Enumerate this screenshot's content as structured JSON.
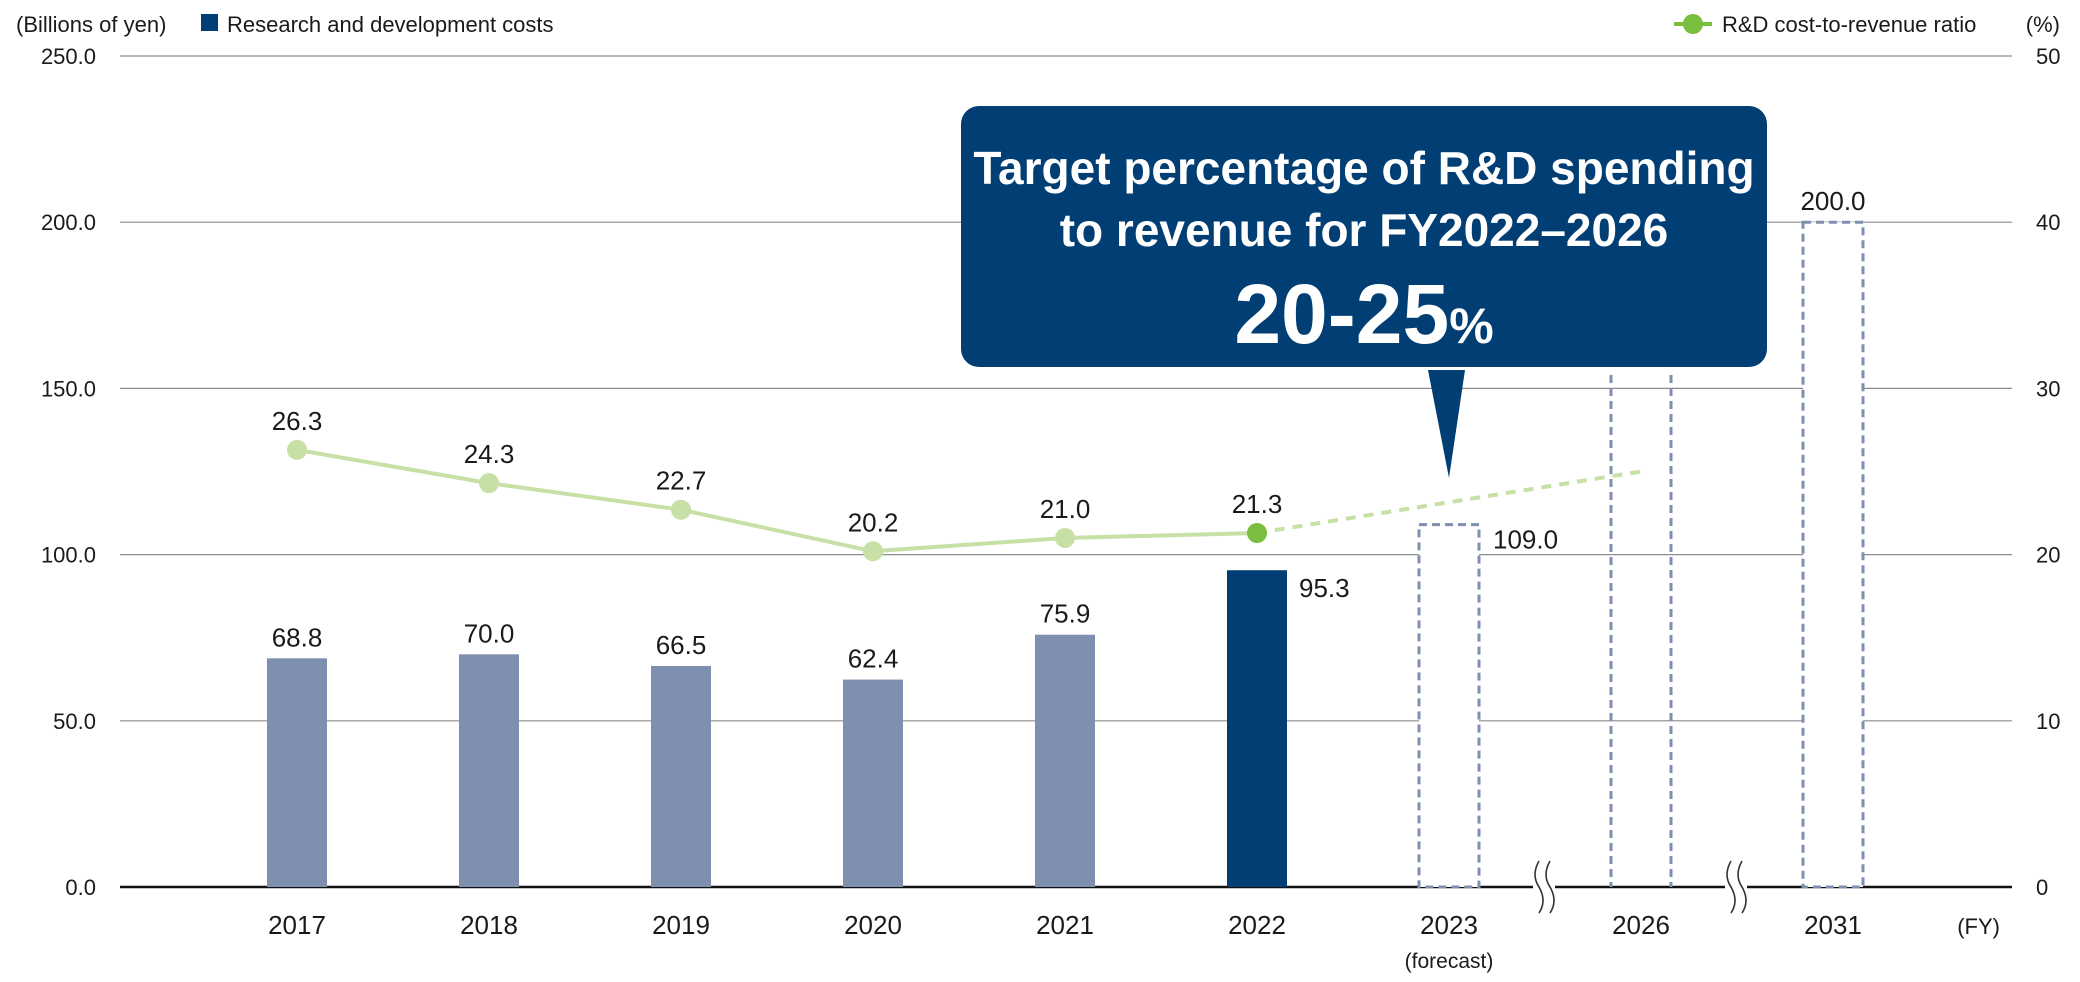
{
  "chart_data": {
    "type": "bar",
    "categories": [
      "2017",
      "2018",
      "2019",
      "2020",
      "2021",
      "2022",
      "2023",
      "2026",
      "2031"
    ],
    "category_sublabels": {
      "2023": "(forecast)"
    },
    "x_unit_label": "(FY)",
    "left_axis": {
      "unit_label": "(Billions of yen)",
      "ylim": [
        0,
        250
      ],
      "ticks": [
        "0.0",
        "50.0",
        "100.0",
        "150.0",
        "200.0",
        "250.0"
      ]
    },
    "right_axis": {
      "unit_label": "(%)",
      "ylim": [
        0,
        50
      ],
      "ticks": [
        "0",
        "10",
        "20",
        "30",
        "40",
        "50"
      ]
    },
    "grid": true,
    "series": [
      {
        "name": "Research and development costs",
        "kind": "bar",
        "axis": "left",
        "values": [
          68.8,
          70.0,
          66.5,
          62.4,
          75.9,
          95.3,
          109.0,
          null,
          200.0
        ],
        "labels": [
          "68.8",
          "70.0",
          "66.5",
          "62.4",
          "75.9",
          "95.3",
          "109.0",
          "",
          "200.0"
        ],
        "styles": [
          "past",
          "past",
          "past",
          "past",
          "past",
          "current",
          "target",
          "target",
          "target"
        ]
      },
      {
        "name": "R&D cost-to-revenue ratio",
        "kind": "line",
        "axis": "right",
        "values": [
          26.3,
          24.3,
          22.7,
          20.2,
          21.0,
          21.3,
          null,
          null,
          null
        ],
        "labels": [
          "26.3",
          "24.3",
          "22.7",
          "20.2",
          "21.0",
          "21.3",
          "",
          "",
          ""
        ]
      }
    ],
    "legend_placement": "top",
    "annotation": {
      "line1": "Target percentage of R&D spending",
      "line2": "to revenue for FY2022–2026",
      "value": "20-25",
      "unit": "%"
    },
    "colors": {
      "bar_past": "#7f8faf",
      "bar_current": "#013e73",
      "bar_target_border": "#7f8faf",
      "line_past": "#c7e0a6",
      "marker_current": "#79be3f",
      "callout_bg": "#013e73",
      "gridline": "#8c8c8c",
      "text": "#1a1a1a"
    }
  }
}
